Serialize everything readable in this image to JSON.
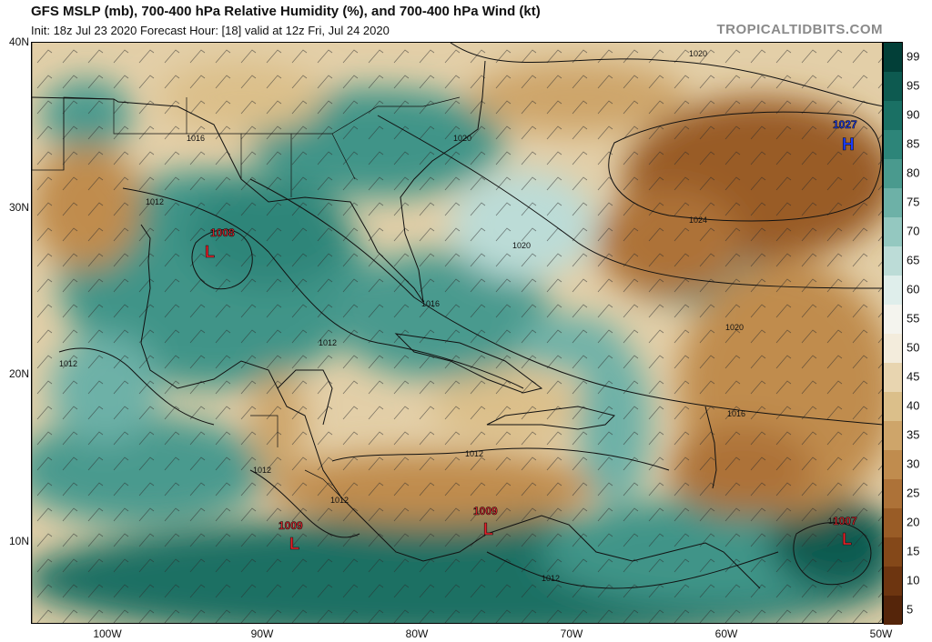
{
  "header": {
    "title": "GFS MSLP (mb), 700-400 hPa Relative Humidity (%), and 700-400 hPa Wind (kt)",
    "subtitle": "Init: 18z Jul 23 2020   Forecast Hour: [18]   valid at 12z Fri, Jul 24 2020",
    "brand": "TROPICALTIDBITS.COM"
  },
  "axes": {
    "lat_labels": [
      "40N",
      "30N",
      "20N",
      "10N"
    ],
    "lon_labels": [
      "100W",
      "90W",
      "80W",
      "70W",
      "60W",
      "50W"
    ]
  },
  "pressure_centers": [
    {
      "type": "L",
      "value": "1008",
      "color": "#e8222a"
    },
    {
      "type": "L",
      "value": "1009",
      "color": "#e8222a"
    },
    {
      "type": "L",
      "value": "1009",
      "color": "#e8222a"
    },
    {
      "type": "L",
      "value": "1007",
      "color": "#e8222a"
    },
    {
      "type": "H",
      "value": "1027",
      "color": "#1a3cff"
    }
  ],
  "isobar_labels": [
    "1020",
    "1016",
    "1020",
    "1012",
    "1012",
    "1016",
    "1012",
    "1012",
    "1024",
    "1020",
    "1020",
    "1016",
    "1012",
    "1012",
    "1012",
    "1012"
  ],
  "colorbar": {
    "labels": [
      "99",
      "95",
      "90",
      "85",
      "80",
      "75",
      "70",
      "65",
      "60",
      "55",
      "50",
      "45",
      "40",
      "35",
      "30",
      "25",
      "20",
      "15",
      "10",
      "5"
    ],
    "colors": [
      "#023f38",
      "#0d5a50",
      "#1a7064",
      "#2d8579",
      "#4a9a8e",
      "#6db1a7",
      "#94c8c0",
      "#bcdcd7",
      "#dfeeeb",
      "#f4f4ee",
      "#f3ecdc",
      "#e8d5b0",
      "#dbbf8a",
      "#cea56a",
      "#c08c4e",
      "#ad7238",
      "#995c26",
      "#844819",
      "#6d3510",
      "#55250a"
    ]
  }
}
